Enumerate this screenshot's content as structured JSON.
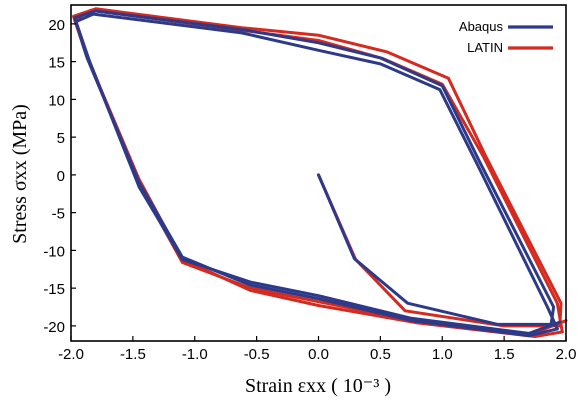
{
  "chart_data": {
    "type": "line",
    "xlabel": "Strain  εxx ( 10⁻³ )",
    "ylabel": "Stress  σxx (MPa)",
    "xlim": [
      -2.0,
      2.0
    ],
    "ylim": [
      -22,
      22.5
    ],
    "xticks": [
      -2.0,
      -1.5,
      -1.0,
      -0.5,
      0.0,
      0.5,
      1.0,
      1.5,
      2.0
    ],
    "xtick_labels": [
      "-2.0",
      "-1.5",
      "-1.0",
      "-0.5",
      "0.0",
      "0.5",
      "1.0",
      "1.5",
      "2.0"
    ],
    "yticks": [
      20,
      15,
      10,
      5,
      0,
      -5,
      -10,
      -15,
      -20
    ],
    "ytick_labels": [
      "20",
      "15",
      "10",
      "5",
      "0",
      "-5",
      "-10",
      "-15",
      "-20"
    ],
    "grid": false,
    "legend": "top-right",
    "series": [
      {
        "name": "LATIN",
        "color": "#d42a20",
        "lines": [
          [
            [
              0.0,
              0.0
            ],
            [
              0.3,
              -11.2
            ],
            [
              0.7,
              -18
            ],
            [
              1.5,
              -20
            ],
            [
              1.95,
              -20
            ],
            [
              1.96,
              -17
            ],
            [
              1.35,
              2.5
            ],
            [
              1.05,
              12.8
            ],
            [
              0.55,
              16.3
            ],
            [
              0.0,
              18.5
            ],
            [
              -0.62,
              19.5
            ],
            [
              -1.8,
              22
            ],
            [
              -1.98,
              21
            ],
            [
              -1.88,
              16
            ],
            [
              -1.45,
              -0.6
            ],
            [
              -1.1,
              -11.2
            ],
            [
              -0.55,
              -15.3
            ],
            [
              0.0,
              -17.3
            ],
            [
              0.8,
              -19.6
            ],
            [
              1.75,
              -21.4
            ],
            [
              1.97,
              -20.8
            ]
          ],
          [
            [
              1.97,
              -20.8
            ],
            [
              1.93,
              -17
            ],
            [
              1.33,
              2.5
            ],
            [
              1.0,
              12.0
            ],
            [
              0.52,
              15.4
            ],
            [
              0.0,
              17.8
            ],
            [
              -0.64,
              19.2
            ],
            [
              -1.84,
              21.8
            ],
            [
              -1.97,
              20.5
            ],
            [
              -1.85,
              15
            ],
            [
              -1.45,
              -1.2
            ],
            [
              -1.1,
              -11.6
            ],
            [
              -0.55,
              -15
            ],
            [
              0.0,
              -16.8
            ],
            [
              0.8,
              -19.4
            ],
            [
              1.7,
              -21.2
            ],
            [
              2.0,
              -19.3
            ]
          ]
        ]
      },
      {
        "name": "Abaqus",
        "color": "#2d3a8a",
        "lines": [
          [
            [
              0.0,
              0.0
            ],
            [
              0.29,
              -11.1
            ],
            [
              0.72,
              -17
            ],
            [
              1.45,
              -19.8
            ],
            [
              1.88,
              -19.8
            ],
            [
              1.9,
              -17.5
            ],
            [
              1.3,
              1.8
            ],
            [
              1.0,
              11.8
            ],
            [
              0.5,
              15.5
            ],
            [
              0.0,
              17.5
            ],
            [
              -0.6,
              19.2
            ],
            [
              -1.8,
              21.7
            ],
            [
              -1.97,
              20.8
            ],
            [
              -1.87,
              15.5
            ],
            [
              -1.45,
              -1.0
            ],
            [
              -1.1,
              -10.9
            ],
            [
              -0.55,
              -14.6
            ],
            [
              0.0,
              -16.4
            ],
            [
              0.75,
              -19.3
            ],
            [
              1.7,
              -21.3
            ],
            [
              1.93,
              -20.4
            ]
          ],
          [
            [
              1.93,
              -20.4
            ],
            [
              1.85,
              -17.5
            ],
            [
              1.28,
              1.5
            ],
            [
              0.98,
              11.3
            ],
            [
              0.5,
              14.7
            ],
            [
              0.0,
              16.5
            ],
            [
              -0.62,
              18.8
            ],
            [
              -1.82,
              21.3
            ],
            [
              -1.96,
              20.3
            ],
            [
              -1.85,
              15
            ],
            [
              -1.45,
              -1.6
            ],
            [
              -1.1,
              -11.2
            ],
            [
              -0.55,
              -14.2
            ],
            [
              0.0,
              -16
            ],
            [
              0.75,
              -19
            ],
            [
              1.7,
              -21
            ],
            [
              1.95,
              -19.5
            ]
          ]
        ]
      }
    ]
  }
}
